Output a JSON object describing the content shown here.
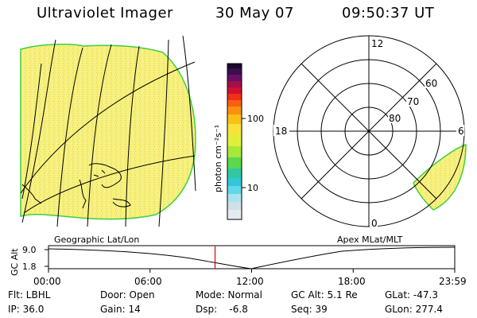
{
  "header": {
    "title": "Ultraviolet Imager",
    "date": "30 May 07",
    "time": "09:50:37 UT"
  },
  "colorbar": {
    "label": "photon cm⁻²s⁻¹",
    "ticks": [
      "100",
      "10"
    ]
  },
  "polar_plot": {
    "mlt_labels": {
      "top": "12",
      "left": "18",
      "right": "6",
      "bottom": "0"
    },
    "lat_labels": [
      "60",
      "70",
      "80"
    ]
  },
  "orbit_panel": {
    "left_title": "Geographic Lat/Lon",
    "right_title": "Apex MLat/MLT",
    "y_axis_label": "GC Alt",
    "y_ticks": [
      "9.0",
      "1.8"
    ],
    "x_ticks": [
      "00:00",
      "06:00",
      "12:00",
      "18:00",
      "23:59"
    ],
    "current_time_fraction": 0.41,
    "marker_color": "#dd0000"
  },
  "status": {
    "filter": "Flt: LBHL",
    "ip": "IP: 36.0",
    "door": "Door: Open",
    "gain": "Gain: 14",
    "mode": "Mode: Normal",
    "dsp": "Dsp:    -6.8",
    "gc_alt": "GC Alt: 5.1 Re",
    "seq": "Seq: 39",
    "glat": "GLat: -47.3",
    "glon": "GLon: 277.4"
  }
}
